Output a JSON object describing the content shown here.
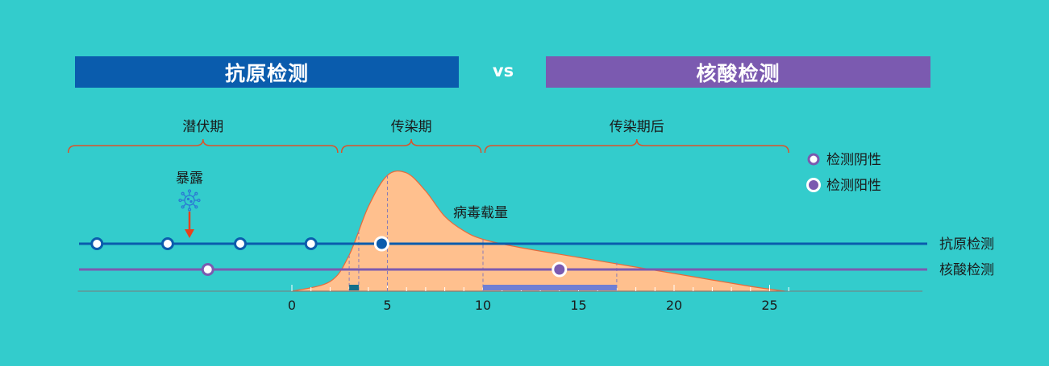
{
  "colors": {
    "background": "#33cccc",
    "antigen": "#0a5cad",
    "nucleic": "#7b5ab0",
    "curve_fill": "#ffc08e",
    "curve_stroke": "#e86a3a",
    "brace": "#d9542b",
    "arrow": "#e8401c",
    "axis": "#7a7a7a"
  },
  "header": {
    "antigen_title": "抗原检测",
    "vs_label": "vs",
    "nucleic_title": "核酸检测"
  },
  "phases": [
    {
      "label": "潜伏期",
      "start": -11.7,
      "end": 2.4
    },
    {
      "label": "传染期",
      "start": 2.6,
      "end": 9.9
    },
    {
      "label": "传染期后",
      "start": 10.1,
      "end": 26.0
    }
  ],
  "exposure": {
    "label": "暴露",
    "day": -5.5
  },
  "viral_load_label": "病毒载量",
  "legend": [
    {
      "label": "检测阴性",
      "type": "negative"
    },
    {
      "label": "检测阳性",
      "type": "positive"
    }
  ],
  "rows": [
    {
      "label": "抗原检测",
      "key": "antigen",
      "points": [
        {
          "day": -10.2,
          "result": "negative"
        },
        {
          "day": -6.5,
          "result": "negative"
        },
        {
          "day": -2.7,
          "result": "negative"
        },
        {
          "day": 1.0,
          "result": "negative"
        },
        {
          "day": 4.7,
          "result": "positive"
        }
      ]
    },
    {
      "label": "核酸检测",
      "key": "nucleic",
      "points": [
        {
          "day": -4.4,
          "result": "negative"
        },
        {
          "day": 14.0,
          "result": "positive"
        }
      ]
    }
  ],
  "windows": [
    {
      "key": "antigen",
      "start": 3.0,
      "end": 3.5
    },
    {
      "key": "nucleic",
      "start": 10.0,
      "end": 17.0
    }
  ],
  "axis": {
    "ticks": [
      0,
      5,
      10,
      15,
      20,
      25
    ],
    "range": [
      -11.2,
      33
    ]
  },
  "curve": {
    "x": [
      0,
      2,
      3,
      4,
      5,
      6,
      7,
      8,
      9,
      10,
      12,
      15,
      18,
      21,
      24,
      25.8
    ],
    "y": [
      0.0,
      0.08,
      0.3,
      0.7,
      0.96,
      0.98,
      0.83,
      0.62,
      0.5,
      0.43,
      0.36,
      0.28,
      0.2,
      0.12,
      0.04,
      0.0
    ]
  }
}
